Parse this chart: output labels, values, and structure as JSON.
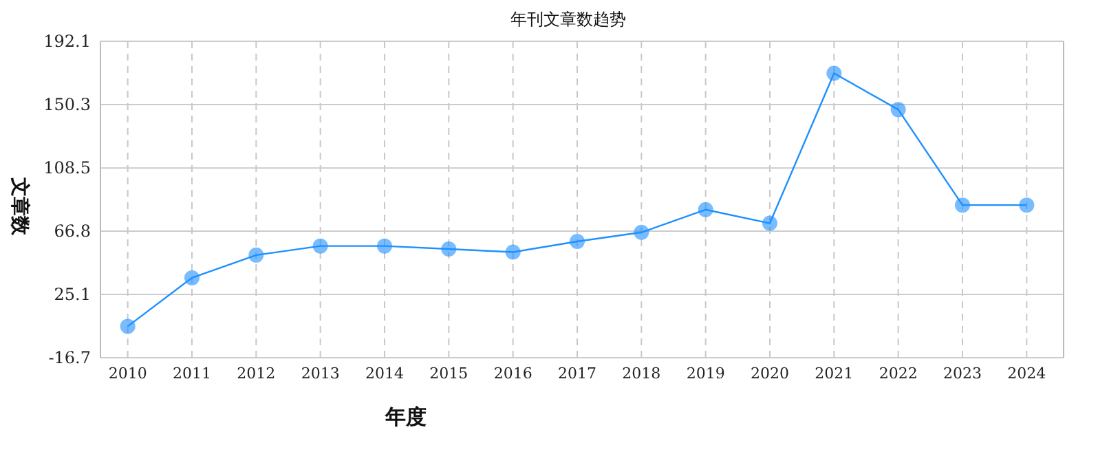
{
  "chart_data": {
    "type": "line",
    "title": "年刊文章数趋势",
    "xlabel": "年度",
    "ylabel": "文章数",
    "categories": [
      "2010",
      "2011",
      "2012",
      "2013",
      "2014",
      "2015",
      "2016",
      "2017",
      "2018",
      "2019",
      "2020",
      "2021",
      "2022",
      "2023",
      "2024"
    ],
    "series": [
      {
        "color": "#1e90ff",
        "values": [
          4,
          36,
          51,
          57,
          57,
          55,
          53,
          60,
          66,
          81,
          72,
          171,
          147,
          84,
          84
        ]
      }
    ],
    "ylim": [
      -16.7,
      192.1
    ],
    "yticks": [
      -16.7,
      25.1,
      66.8,
      108.5,
      150.3,
      192.1
    ],
    "grid": true,
    "marker": "circle",
    "line_style": "solid"
  }
}
